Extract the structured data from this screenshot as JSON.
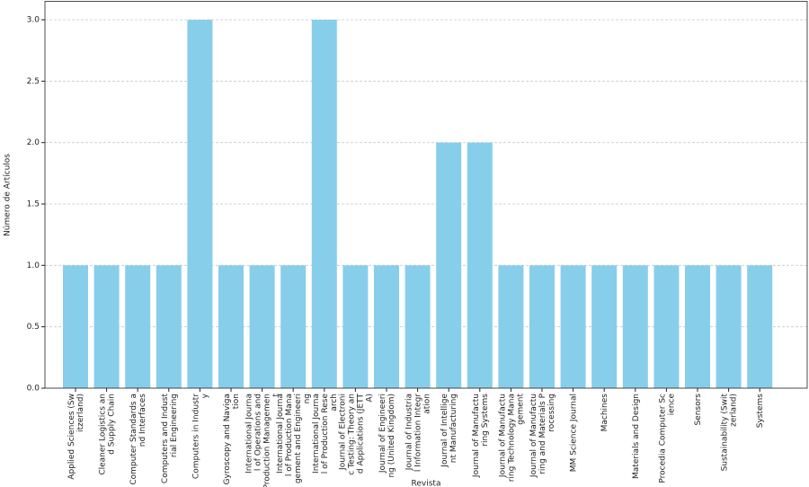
{
  "chart_data": {
    "type": "bar",
    "x_label": "Revista",
    "y_label": "Número de Artículos",
    "categories": [
      "Applied Sciences (Sw\nitzerland)",
      "Cleaner Logistics an\nd Supply Chain",
      "Computer Standards a\nnd Interfaces",
      "Computers and Indust\nrial Engineering",
      "Computers in Industr\ny",
      "Gyroscopy and Naviga\ntion",
      "International Journa\nl of Operations and\nProduction Managemen\nt",
      "International Journa\nl of Production Mana\ngement and Engineeri\nng",
      "International Journa\nl of Production Rese\narch",
      "Journal of Electroni\nc Testing: Theory an\nd Applications (JETT\nA)",
      "Journal of Engineeri\nng (United Kingdom)",
      "Journal of Industria\nl Information Integr\nation",
      "Journal of Intellige\nnt Manufacturing",
      "Journal of Manufactu\nring Systems",
      "Journal of Manufactu\nring Technology Mana\ngement",
      "Journal of Manufactu\nring and Materials P\nrocessing",
      "MM Science Journal",
      "Machines",
      "Materials and Design",
      "Procedia Computer Sc\nience",
      "Sensors",
      "Sustainability (Swit\nzerland)",
      "Systems"
    ],
    "values": [
      1,
      1,
      1,
      1,
      3,
      1,
      1,
      1,
      3,
      1,
      1,
      1,
      2,
      2,
      1,
      1,
      1,
      1,
      1,
      1,
      1,
      1,
      1
    ],
    "color": "#87ceeb",
    "ylim": [
      0,
      3.15
    ],
    "yticks": [
      {
        "value": 0,
        "label": "0.0"
      },
      {
        "value": 0.5,
        "label": "0.5"
      },
      {
        "value": 1,
        "label": "1.0"
      },
      {
        "value": 1.5,
        "label": "1.5"
      },
      {
        "value": 2,
        "label": "2.0"
      },
      {
        "value": 2.5,
        "label": "2.5"
      },
      {
        "value": 3,
        "label": "3.0"
      }
    ],
    "grid": true
  }
}
